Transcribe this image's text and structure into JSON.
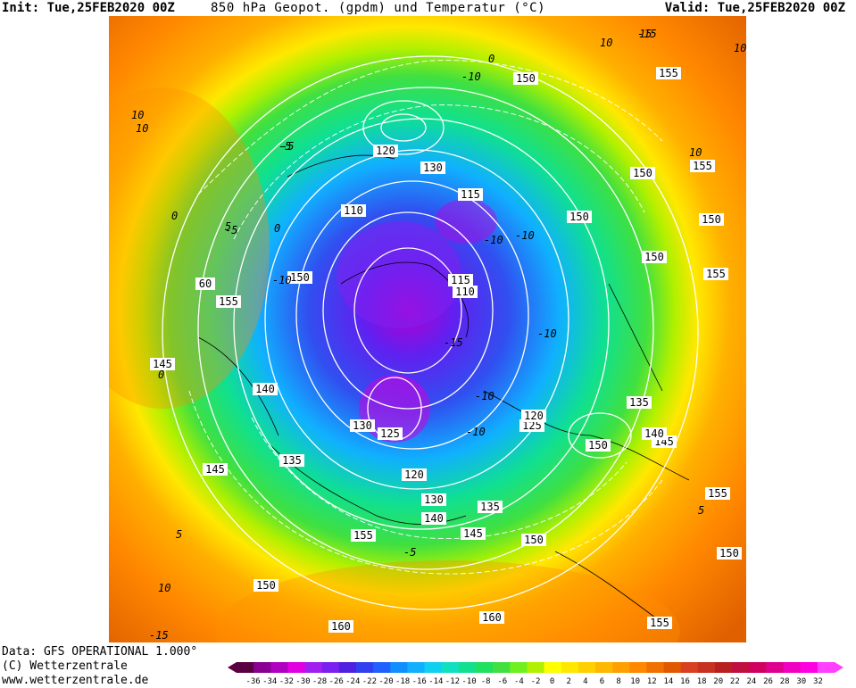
{
  "header": {
    "init": "Init: Tue,25FEB2020 00Z",
    "title": "850 hPa Geopot. (gpdm) und Temperatur (°C)",
    "valid": "Valid: Tue,25FEB2020 00Z"
  },
  "footer": {
    "data_source": "Data: GFS OPERATIONAL 1.000°",
    "copyright": "(C) Wetterzentrale",
    "website": "www.wetterzentrale.de"
  },
  "colorbar": {
    "ticks": [
      "-36",
      "-34",
      "-32",
      "-30",
      "-28",
      "-26",
      "-24",
      "-22",
      "-20",
      "-18",
      "-16",
      "-14",
      "-12",
      "-10",
      "-8",
      "-6",
      "-4",
      "-2",
      "0",
      "2",
      "4",
      "6",
      "8",
      "10",
      "12",
      "14",
      "16",
      "18",
      "20",
      "22",
      "24",
      "26",
      "28",
      "30",
      "32"
    ],
    "colors": [
      "#5a0040",
      "#8a0090",
      "#b000c0",
      "#e000e0",
      "#a020f0",
      "#7a20f0",
      "#5020e0",
      "#3040f0",
      "#2060ff",
      "#1090ff",
      "#10b0ff",
      "#10d0f0",
      "#10e0c0",
      "#10e090",
      "#20e060",
      "#40e040",
      "#70f020",
      "#b0f000",
      "#ffff00",
      "#ffe800",
      "#ffd000",
      "#ffb800",
      "#ffa000",
      "#ff8800",
      "#f07000",
      "#e05800",
      "#d84020",
      "#c83020",
      "#b82020",
      "#c01040",
      "#d00060",
      "#e00090",
      "#f000c0",
      "#ff00e0",
      "#ff40ff"
    ]
  },
  "map": {
    "geopotential_labels": [
      {
        "text": "150"
      },
      {
        "text": "155"
      },
      {
        "text": "120"
      },
      {
        "text": "130"
      },
      {
        "text": "115"
      },
      {
        "text": "110"
      },
      {
        "text": "150"
      },
      {
        "text": "155"
      },
      {
        "text": "150"
      },
      {
        "text": "150"
      },
      {
        "text": "150"
      },
      {
        "text": "155"
      },
      {
        "text": "115"
      },
      {
        "text": "110"
      },
      {
        "text": "150"
      },
      {
        "text": "155"
      },
      {
        "text": "145"
      },
      {
        "text": "140"
      },
      {
        "text": "130"
      },
      {
        "text": "125"
      },
      {
        "text": "135"
      },
      {
        "text": "120"
      },
      {
        "text": "130"
      },
      {
        "text": "140"
      },
      {
        "text": "135"
      },
      {
        "text": "145"
      },
      {
        "text": "155"
      },
      {
        "text": "150"
      },
      {
        "text": "145"
      },
      {
        "text": "150"
      },
      {
        "text": "160"
      },
      {
        "text": "160"
      },
      {
        "text": "155"
      },
      {
        "text": "150"
      },
      {
        "text": "145"
      },
      {
        "text": "140"
      },
      {
        "text": "135"
      },
      {
        "text": "125"
      },
      {
        "text": "120"
      },
      {
        "text": "150"
      },
      {
        "text": "155"
      },
      {
        "text": "60"
      }
    ],
    "temperature_labels": [
      {
        "text": "-15"
      },
      {
        "text": "10"
      },
      {
        "text": "0"
      },
      {
        "text": "-10"
      },
      {
        "text": "-5"
      },
      {
        "text": "-5"
      },
      {
        "text": "10"
      },
      {
        "text": "0"
      },
      {
        "text": "-10"
      },
      {
        "text": "-10"
      },
      {
        "text": "-10"
      },
      {
        "text": "-15"
      },
      {
        "text": "-10"
      },
      {
        "text": "-10"
      },
      {
        "text": "10"
      },
      {
        "text": "10"
      },
      {
        "text": "0"
      },
      {
        "text": "-5"
      },
      {
        "text": "5"
      },
      {
        "text": "10"
      },
      {
        "text": "5"
      },
      {
        "text": "-15"
      },
      {
        "text": "0"
      },
      {
        "text": "-5"
      },
      {
        "text": "-10"
      },
      {
        "text": "5"
      },
      {
        "text": "10"
      },
      {
        "text": "15"
      }
    ]
  }
}
